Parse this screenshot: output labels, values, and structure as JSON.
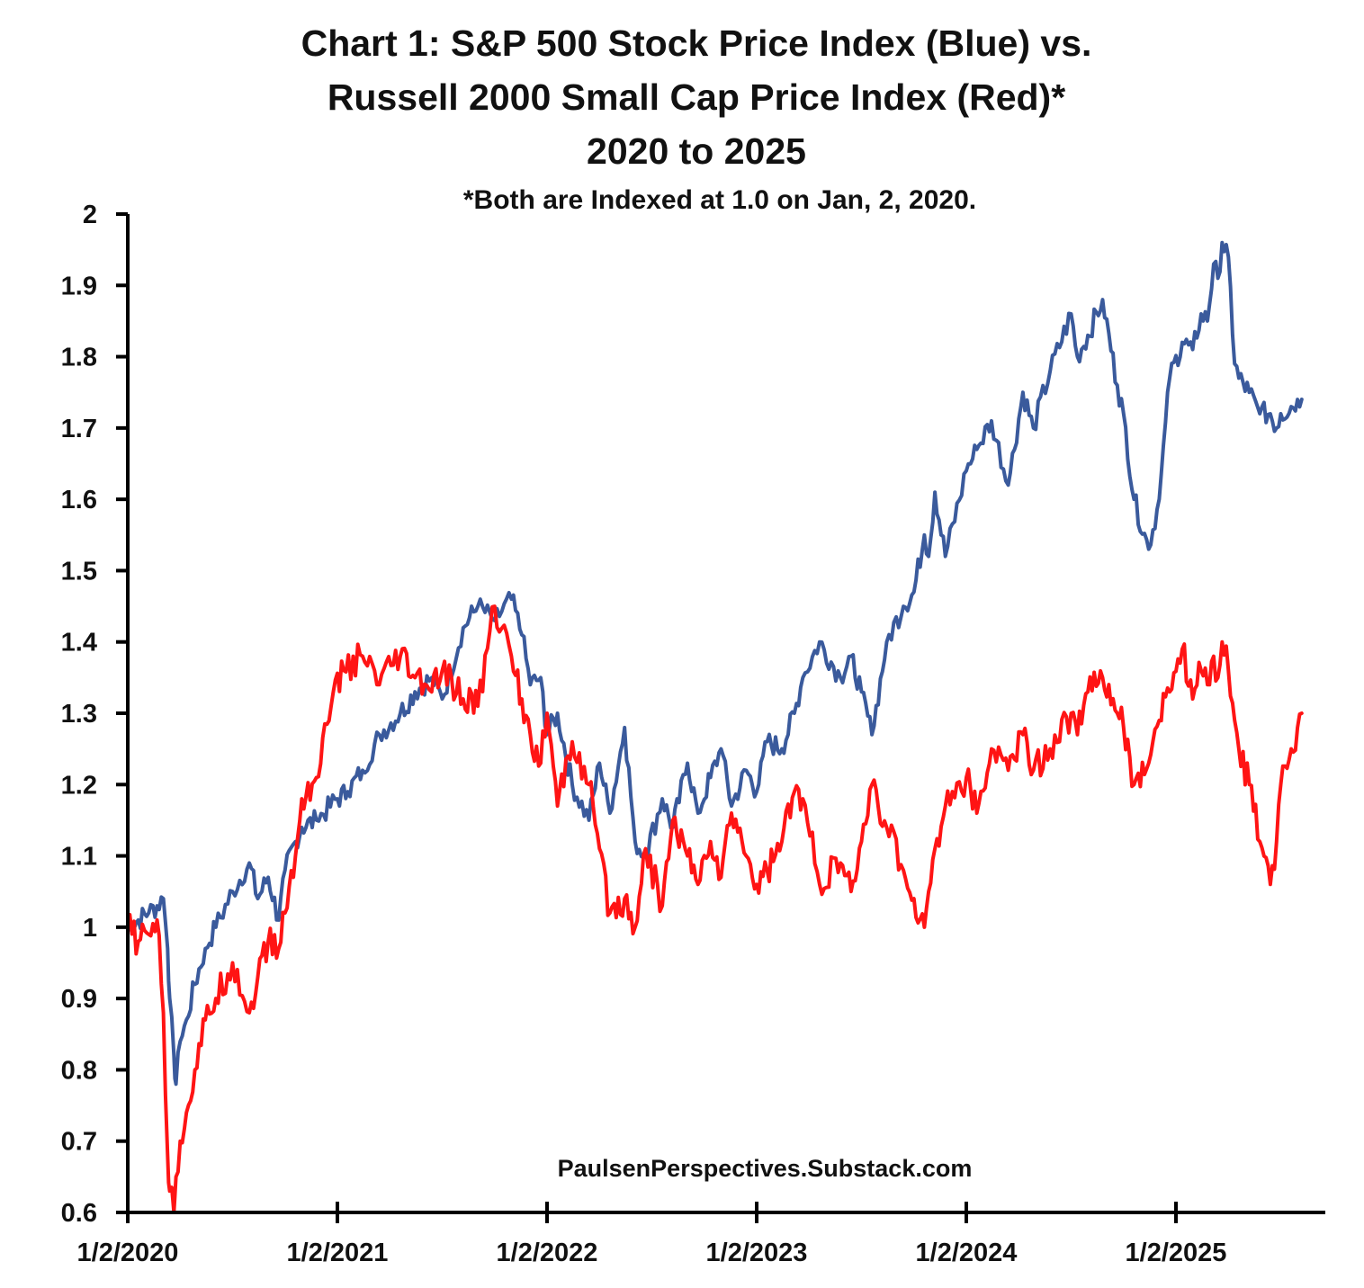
{
  "chart_data": {
    "type": "line",
    "title_lines": [
      "Chart 1: S&P 500 Stock Price Index (Blue) vs.",
      "Russell 2000 Small Cap Price Index (Red)*",
      "2020 to 2025"
    ],
    "subtitle": "*Both are Indexed at 1.0 on Jan, 2, 2020.",
    "source": "PaulsenPerspectives.Substack.com",
    "xlabel": "",
    "ylabel": "",
    "x_unit": "years since 1/2/2020",
    "xlim": [
      0,
      5.72
    ],
    "ylim": [
      0.6,
      2.0
    ],
    "y_ticks": [
      {
        "value": 0.6,
        "label": "0.6"
      },
      {
        "value": 0.7,
        "label": "0.7"
      },
      {
        "value": 0.8,
        "label": "0.8"
      },
      {
        "value": 0.9,
        "label": "0.9"
      },
      {
        "value": 1.0,
        "label": "1"
      },
      {
        "value": 1.1,
        "label": "1.1"
      },
      {
        "value": 1.2,
        "label": "1.2"
      },
      {
        "value": 1.3,
        "label": "1.3"
      },
      {
        "value": 1.4,
        "label": "1.4"
      },
      {
        "value": 1.5,
        "label": "1.5"
      },
      {
        "value": 1.6,
        "label": "1.6"
      },
      {
        "value": 1.7,
        "label": "1.7"
      },
      {
        "value": 1.8,
        "label": "1.8"
      },
      {
        "value": 1.9,
        "label": "1.9"
      },
      {
        "value": 2.0,
        "label": "2"
      }
    ],
    "x_ticks": [
      {
        "value": 0,
        "label": "1/2/2020"
      },
      {
        "value": 1,
        "label": "1/2/2021"
      },
      {
        "value": 2,
        "label": "1/2/2022"
      },
      {
        "value": 3,
        "label": "1/2/2023"
      },
      {
        "value": 4,
        "label": "1/2/2024"
      },
      {
        "value": 5,
        "label": "1/2/2025"
      }
    ],
    "grid": false,
    "series": [
      {
        "name": "S&P 500 Stock Price Index",
        "color": "#3a5a9c",
        "x": [
          0,
          0.05,
          0.1,
          0.14,
          0.17,
          0.19,
          0.2,
          0.22,
          0.23,
          0.25,
          0.28,
          0.32,
          0.37,
          0.42,
          0.5,
          0.58,
          0.62,
          0.67,
          0.72,
          0.75,
          0.8,
          0.83,
          0.9,
          1.0,
          1.05,
          1.12,
          1.2,
          1.3,
          1.37,
          1.45,
          1.5,
          1.6,
          1.67,
          1.75,
          1.83,
          1.88,
          1.92,
          1.97,
          2.0,
          2.05,
          2.12,
          2.2,
          2.25,
          2.3,
          2.37,
          2.42,
          2.47,
          2.55,
          2.6,
          2.67,
          2.72,
          2.78,
          2.83,
          2.88,
          2.95,
          3.0,
          3.05,
          3.12,
          3.18,
          3.22,
          3.3,
          3.4,
          3.45,
          3.5,
          3.55,
          3.62,
          3.7,
          3.75,
          3.8,
          3.82,
          3.85,
          3.9,
          4.0,
          4.05,
          4.12,
          4.2,
          4.27,
          4.32,
          4.4,
          4.5,
          4.53,
          4.58,
          4.65,
          4.72,
          4.75,
          4.8,
          4.87,
          4.92,
          4.97,
          5.03,
          5.08,
          5.12,
          5.15,
          5.18,
          5.2,
          5.22,
          5.25,
          5.28,
          5.3,
          5.35,
          5.4,
          5.45,
          5.48,
          5.5,
          5.55,
          5.58,
          5.6
        ],
        "values": [
          1.0,
          1.01,
          1.02,
          1.03,
          1.04,
          0.97,
          0.9,
          0.82,
          0.78,
          0.84,
          0.87,
          0.92,
          0.97,
          1.0,
          1.05,
          1.09,
          1.04,
          1.07,
          1.01,
          1.08,
          1.12,
          1.14,
          1.15,
          1.18,
          1.19,
          1.22,
          1.27,
          1.3,
          1.33,
          1.35,
          1.32,
          1.42,
          1.45,
          1.43,
          1.46,
          1.41,
          1.34,
          1.35,
          1.27,
          1.3,
          1.2,
          1.15,
          1.23,
          1.16,
          1.28,
          1.12,
          1.1,
          1.18,
          1.14,
          1.23,
          1.16,
          1.21,
          1.25,
          1.17,
          1.22,
          1.19,
          1.26,
          1.25,
          1.3,
          1.35,
          1.4,
          1.35,
          1.38,
          1.33,
          1.27,
          1.4,
          1.45,
          1.47,
          1.55,
          1.52,
          1.61,
          1.52,
          1.64,
          1.67,
          1.71,
          1.62,
          1.75,
          1.7,
          1.78,
          1.86,
          1.8,
          1.83,
          1.88,
          1.76,
          1.72,
          1.6,
          1.53,
          1.6,
          1.77,
          1.82,
          1.81,
          1.86,
          1.85,
          1.93,
          1.91,
          1.96,
          1.94,
          1.79,
          1.77,
          1.75,
          1.72,
          1.72,
          1.7,
          1.72,
          1.73,
          1.74,
          1.74
        ]
      },
      {
        "name": "Russell 2000 Small Cap Price Index",
        "color": "#ff1414",
        "x": [
          0,
          0.05,
          0.1,
          0.14,
          0.17,
          0.19,
          0.2,
          0.22,
          0.23,
          0.25,
          0.28,
          0.32,
          0.37,
          0.42,
          0.5,
          0.58,
          0.62,
          0.67,
          0.72,
          0.75,
          0.8,
          0.83,
          0.9,
          0.97,
          1.03,
          1.12,
          1.2,
          1.3,
          1.37,
          1.45,
          1.5,
          1.6,
          1.67,
          1.75,
          1.83,
          1.88,
          1.92,
          1.97,
          2.0,
          2.05,
          2.12,
          2.2,
          2.25,
          2.3,
          2.37,
          2.42,
          2.47,
          2.55,
          2.6,
          2.67,
          2.72,
          2.78,
          2.83,
          2.88,
          2.95,
          3.0,
          3.05,
          3.12,
          3.18,
          3.22,
          3.3,
          3.4,
          3.45,
          3.5,
          3.55,
          3.62,
          3.7,
          3.75,
          3.8,
          3.82,
          3.85,
          3.9,
          4.0,
          4.05,
          4.12,
          4.2,
          4.27,
          4.32,
          4.4,
          4.5,
          4.53,
          4.58,
          4.65,
          4.72,
          4.75,
          4.8,
          4.87,
          4.92,
          4.97,
          5.03,
          5.08,
          5.12,
          5.15,
          5.18,
          5.2,
          5.22,
          5.25,
          5.28,
          5.3,
          5.35,
          5.4,
          5.45,
          5.48,
          5.5,
          5.55,
          5.58,
          5.6
        ],
        "values": [
          1.0,
          0.98,
          0.99,
          1.01,
          0.88,
          0.68,
          0.63,
          0.6,
          0.65,
          0.7,
          0.74,
          0.8,
          0.87,
          0.9,
          0.95,
          0.88,
          0.93,
          0.98,
          0.97,
          1.02,
          1.1,
          1.18,
          1.21,
          1.31,
          1.36,
          1.38,
          1.34,
          1.38,
          1.35,
          1.33,
          1.36,
          1.32,
          1.31,
          1.45,
          1.38,
          1.32,
          1.27,
          1.23,
          1.3,
          1.17,
          1.26,
          1.2,
          1.11,
          1.02,
          1.04,
          1.0,
          1.11,
          1.03,
          1.15,
          1.1,
          1.06,
          1.12,
          1.07,
          1.16,
          1.1,
          1.06,
          1.08,
          1.12,
          1.19,
          1.18,
          1.06,
          1.09,
          1.05,
          1.12,
          1.2,
          1.14,
          1.08,
          1.04,
          1.0,
          1.05,
          1.11,
          1.17,
          1.21,
          1.16,
          1.25,
          1.22,
          1.27,
          1.22,
          1.25,
          1.3,
          1.27,
          1.33,
          1.35,
          1.3,
          1.28,
          1.2,
          1.23,
          1.29,
          1.33,
          1.39,
          1.32,
          1.36,
          1.34,
          1.38,
          1.35,
          1.4,
          1.36,
          1.29,
          1.25,
          1.2,
          1.12,
          1.06,
          1.12,
          1.2,
          1.25,
          1.28,
          1.3
        ]
      }
    ]
  }
}
